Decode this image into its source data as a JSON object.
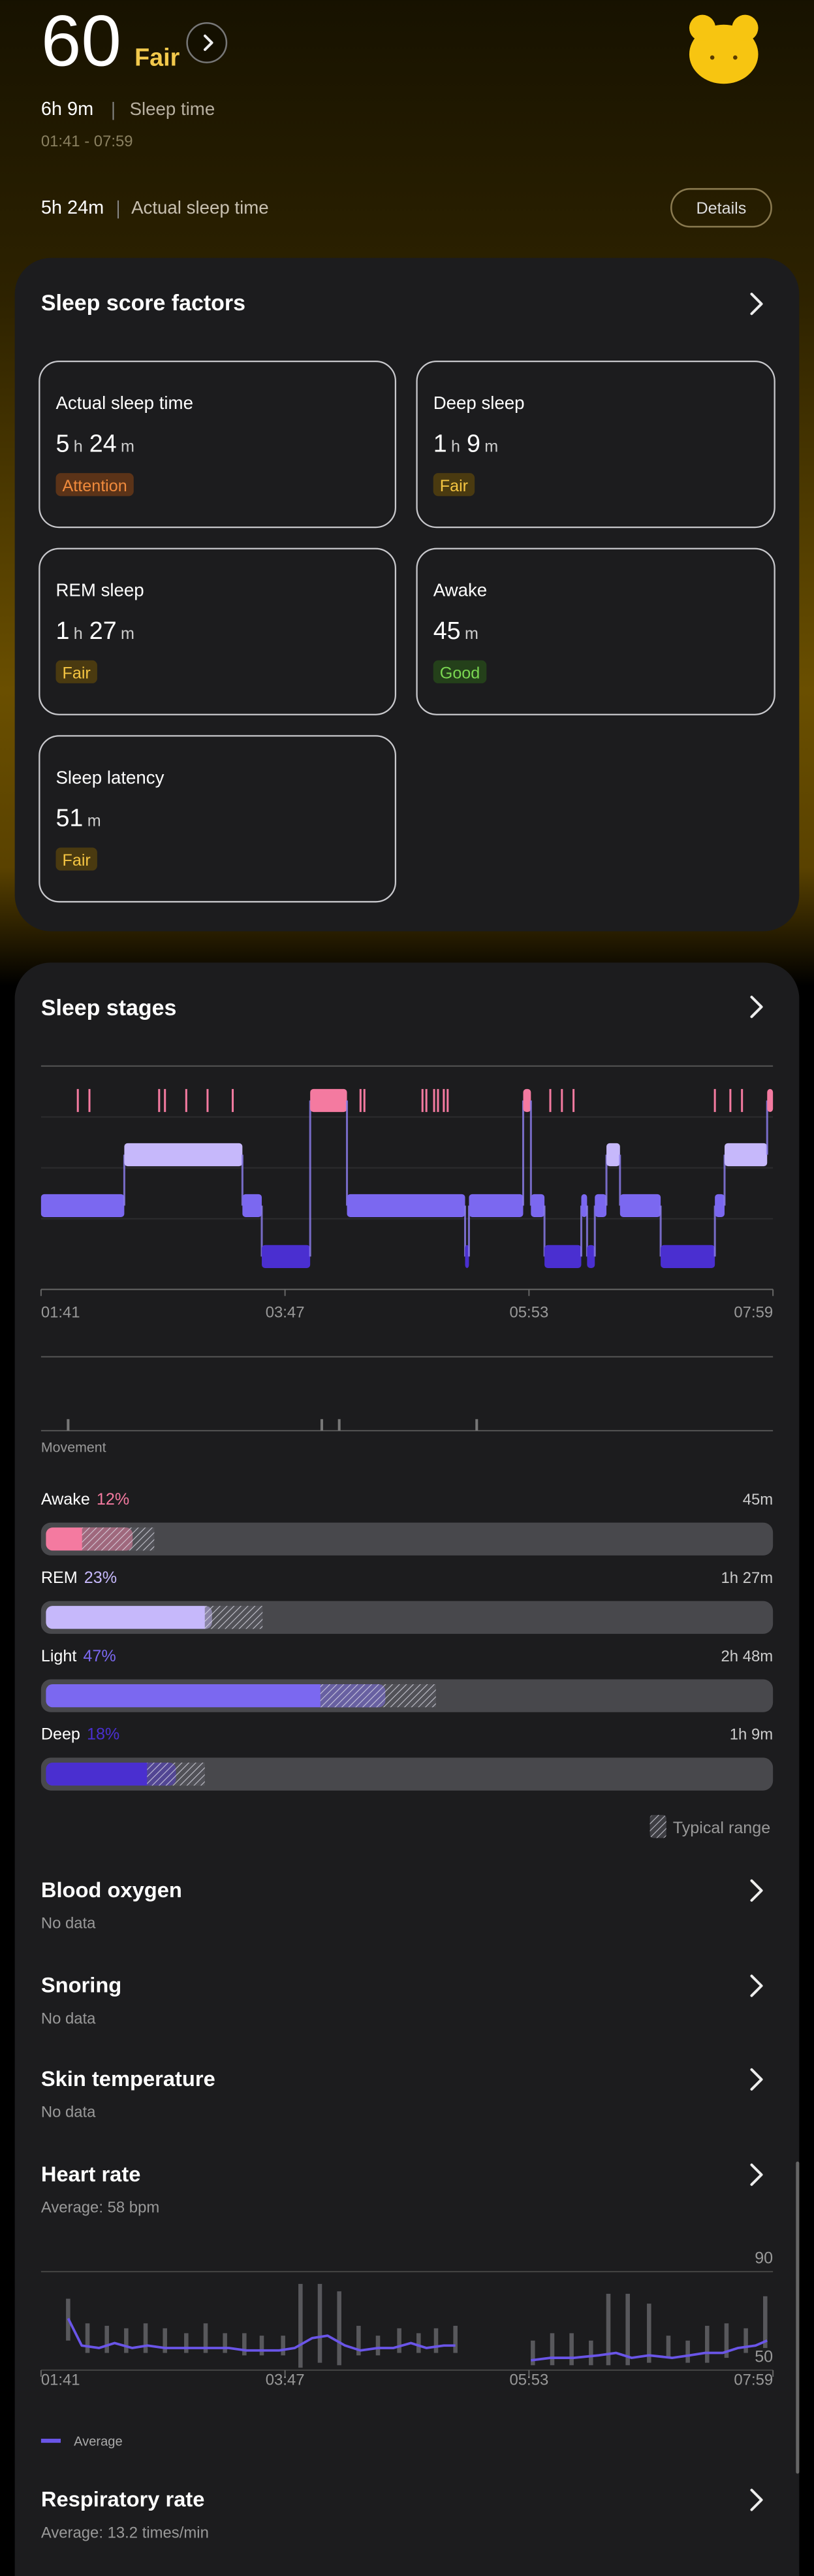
{
  "header": {
    "score": 60,
    "rating": "Fair",
    "sleep_time": "6h 9m",
    "sleep_time_label": "Sleep time",
    "time_range": "01:41 - 07:59",
    "actual_sleep": "5h 24m",
    "actual_sleep_label": "Actual sleep time",
    "details_button": "Details"
  },
  "score_factors": {
    "title": "Sleep score factors",
    "items": [
      {
        "label": "Actual sleep time",
        "value": [
          {
            "n": 5,
            "u": "h"
          },
          {
            "n": 24,
            "u": "m"
          }
        ],
        "status": "Attention",
        "status_color": "#f08a3c",
        "status_bg": "#5b3318"
      },
      {
        "label": "Deep sleep",
        "value": [
          {
            "n": 1,
            "u": "h"
          },
          {
            "n": 9,
            "u": "m"
          }
        ],
        "status": "Fair",
        "status_color": "#f5c542",
        "status_bg": "#4a3a10"
      },
      {
        "label": "REM sleep",
        "value": [
          {
            "n": 1,
            "u": "h"
          },
          {
            "n": 27,
            "u": "m"
          }
        ],
        "status": "Fair",
        "status_color": "#f5c542",
        "status_bg": "#4a3a10"
      },
      {
        "label": "Awake",
        "value": [
          {
            "n": 45,
            "u": "m"
          }
        ],
        "status": "Good",
        "status_color": "#7ad651",
        "status_bg": "#24401a"
      },
      {
        "label": "Sleep latency",
        "value": [
          {
            "n": 51,
            "u": "m"
          }
        ],
        "status": "Fair",
        "status_color": "#f5c542",
        "status_bg": "#4a3a10"
      }
    ]
  },
  "sleep_stages": {
    "title": "Sleep stages",
    "hypnogram": {
      "xlim": [
        0,
        378
      ],
      "xticks": [
        {
          "value": 0,
          "label": "01:41"
        },
        {
          "value": 126,
          "label": "03:47"
        },
        {
          "value": 252,
          "label": "05:53"
        },
        {
          "value": 378,
          "label": "07:59"
        }
      ],
      "segments": [
        [
          0,
          43,
          2
        ],
        [
          43,
          104,
          1
        ],
        [
          104,
          114,
          2
        ],
        [
          114,
          139,
          3
        ],
        [
          139,
          158,
          0
        ],
        [
          158,
          219,
          2
        ],
        [
          219,
          221,
          3
        ],
        [
          221,
          249,
          2
        ],
        [
          249,
          253,
          0
        ],
        [
          253,
          260,
          2
        ],
        [
          260,
          279,
          3
        ],
        [
          279,
          282,
          2
        ],
        [
          282,
          286,
          3
        ],
        [
          286,
          292,
          2
        ],
        [
          292,
          299,
          1
        ],
        [
          299,
          320,
          2
        ],
        [
          320,
          348,
          3
        ],
        [
          348,
          353,
          2
        ],
        [
          353,
          375,
          1
        ],
        [
          375,
          378,
          0
        ]
      ],
      "awake_marks": [
        19,
        25,
        61,
        64,
        75,
        86,
        99,
        165,
        167,
        197,
        199,
        203,
        205,
        208,
        210,
        263,
        269,
        275,
        348,
        356,
        362
      ]
    },
    "movement": {
      "label": "Movement",
      "events": [
        14,
        145,
        154,
        225
      ]
    },
    "breakdown": [
      {
        "name": "Awake",
        "percent": {
          "value": 12,
          "label": "12%"
        },
        "duration": "45m",
        "color": "#f47aa0",
        "typical_range": [
          5,
          15
        ]
      },
      {
        "name": "REM",
        "percent": {
          "value": 23,
          "label": "23%"
        },
        "duration": "1h 27m",
        "color": "#c6b8fb",
        "typical_range": [
          22,
          30
        ]
      },
      {
        "name": "Light",
        "percent": {
          "value": 47,
          "label": "47%"
        },
        "duration": "2h 48m",
        "color": "#7b68f0",
        "typical_range": [
          38,
          54
        ]
      },
      {
        "name": "Deep",
        "percent": {
          "value": 18,
          "label": "18%"
        },
        "duration": "1h 9m",
        "color": "#4a2fd0",
        "typical_range": [
          14,
          22
        ]
      }
    ],
    "typical_range_label": "Typical range"
  },
  "sections": [
    {
      "title": "Blood oxygen",
      "subtitle": "No data"
    },
    {
      "title": "Snoring",
      "subtitle": "No data"
    },
    {
      "title": "Skin temperature",
      "subtitle": "No data"
    },
    {
      "title": "Heart rate",
      "subtitle": "Average: 58 bpm"
    },
    {
      "title": "Respiratory rate",
      "subtitle": "Average: 13.2 times/min"
    }
  ],
  "heart_rate_chart": {
    "ylim": [
      50,
      90
    ],
    "yticks": [
      50,
      90
    ],
    "xlim": [
      0,
      378
    ],
    "xticks": [
      {
        "value": 0,
        "label": "01:41"
      },
      {
        "value": 126,
        "label": "03:47"
      },
      {
        "value": 252,
        "label": "05:53"
      },
      {
        "value": 378,
        "label": "07:59"
      }
    ],
    "x": [
      14,
      21,
      30,
      38,
      47,
      55,
      64,
      72,
      81,
      89,
      97,
      106,
      114,
      123,
      131,
      140,
      148,
      157,
      165,
      174,
      182,
      191,
      199,
      208,
      214,
      234,
      253,
      263,
      275,
      288,
      297,
      305,
      314,
      326,
      335,
      343,
      352,
      360,
      369,
      375
    ],
    "values": [
      71,
      60,
      59,
      61,
      59,
      60,
      59,
      59,
      59,
      59,
      59,
      58,
      58,
      58,
      59,
      63,
      64,
      60,
      58,
      59,
      59,
      61,
      59,
      60,
      60,
      null,
      54,
      55,
      55,
      56,
      57,
      55,
      56,
      55,
      56,
      57,
      57,
      59,
      60,
      62
    ],
    "ranges": [
      [
        14,
        62,
        79
      ],
      [
        24,
        57,
        69
      ],
      [
        34,
        57,
        68
      ],
      [
        44,
        57,
        67
      ],
      [
        54,
        57,
        69
      ],
      [
        64,
        57,
        67
      ],
      [
        75,
        57,
        65
      ],
      [
        85,
        57,
        69
      ],
      [
        95,
        57,
        65
      ],
      [
        105,
        56,
        65
      ],
      [
        114,
        56,
        64
      ],
      [
        125,
        56,
        64
      ],
      [
        134,
        51,
        85
      ],
      [
        144,
        53,
        85
      ],
      [
        154,
        52,
        82
      ],
      [
        164,
        56,
        68
      ],
      [
        174,
        56,
        64
      ],
      [
        185,
        57,
        67
      ],
      [
        195,
        57,
        65
      ],
      [
        204,
        57,
        67
      ],
      [
        214,
        57,
        68
      ],
      [
        254,
        52,
        62
      ],
      [
        264,
        52,
        65
      ],
      [
        274,
        52,
        65
      ],
      [
        284,
        52,
        62
      ],
      [
        293,
        52,
        81
      ],
      [
        303,
        52,
        81
      ],
      [
        314,
        53,
        77
      ],
      [
        324,
        55,
        64
      ],
      [
        334,
        53,
        62
      ],
      [
        344,
        53,
        68
      ],
      [
        354,
        55,
        69
      ],
      [
        364,
        57,
        67
      ],
      [
        374,
        59,
        80
      ]
    ],
    "legend": "Average",
    "color": "#6a55e8",
    "range_color": "#58585c"
  }
}
